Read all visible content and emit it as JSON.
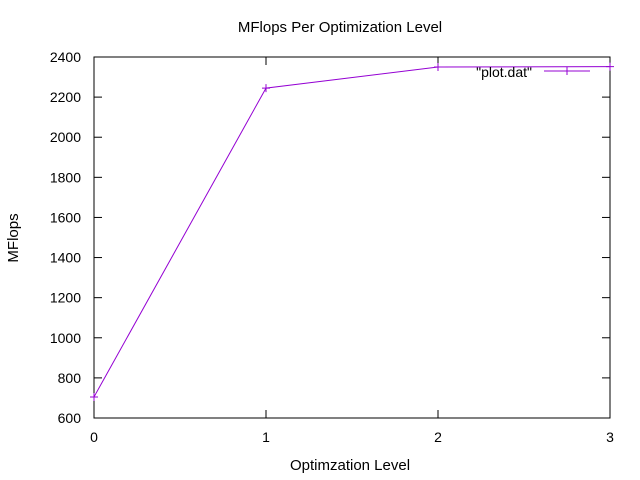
{
  "chart_data": {
    "type": "line",
    "title": "MFlops Per Optimization Level",
    "xlabel": "Optimzation Level",
    "ylabel": "MFlops",
    "xlim": [
      0,
      3
    ],
    "ylim": [
      600,
      2400
    ],
    "x_ticks": [
      "0",
      "1",
      "2",
      "3"
    ],
    "y_ticks": [
      "600",
      "800",
      "1000",
      "1200",
      "1400",
      "1600",
      "1800",
      "2000",
      "2200",
      "2400"
    ],
    "grid": false,
    "legend_position": "top-right",
    "series": [
      {
        "name": "\"plot.dat\"",
        "color": "#9400d3",
        "marker": "plus",
        "x": [
          0,
          1,
          2,
          3
        ],
        "y": [
          705,
          2245,
          2350,
          2352
        ]
      }
    ]
  }
}
